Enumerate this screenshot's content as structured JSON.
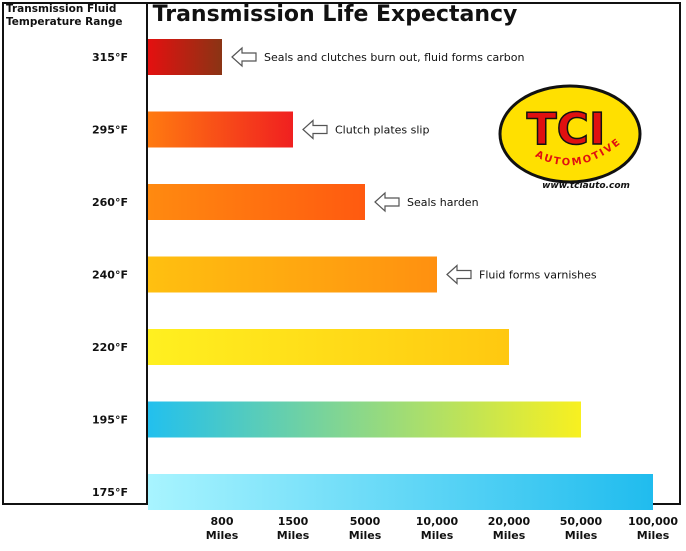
{
  "chart_data": {
    "type": "bar",
    "orientation": "horizontal",
    "title": "Transmission Life Expectancy",
    "ylabel": "Transmission Fluid\nTemperature Range",
    "xlabel": "",
    "categories": [
      "315°F",
      "295°F",
      "260°F",
      "240°F",
      "220°F",
      "195°F",
      "175°F"
    ],
    "x_ticks": [
      "800\nMiles",
      "1500\nMiles",
      "5000\nMiles",
      "10,000\nMiles",
      "20,000\nMiles",
      "50,000\nMiles",
      "100,000\nMiles"
    ],
    "values": [
      "800 Miles",
      "1500 Miles",
      "5000 Miles",
      "10,000 Miles",
      "20,000 Miles",
      "50,000 Miles",
      "100,000 Miles"
    ],
    "value_index": [
      1,
      2,
      3,
      4,
      5,
      6,
      7
    ],
    "annotations": [
      "Seals and clutches burn out, fluid forms carbon",
      "Clutch plates slip",
      "Seals harden",
      "Fluid forms varnishes",
      "",
      "",
      ""
    ],
    "bar_colors": [
      [
        "#e41010",
        "#8a3414"
      ],
      [
        "#ff7a10",
        "#f02020"
      ],
      [
        "#ff8a10",
        "#ff5a10"
      ],
      [
        "#ffc010",
        "#ff9010"
      ],
      [
        "#fff020",
        "#ffc810"
      ],
      [
        "#22c0ee",
        "#f8f020"
      ],
      [
        "#a8f4ff",
        "#20bcee"
      ]
    ],
    "grid": false,
    "legend": "none"
  },
  "logo": {
    "brand": "TCI",
    "subtitle": "AUTOMOTIVE",
    "url": "www.tciauto.com",
    "colors": {
      "fill": "#ffe000",
      "outline": "#111111",
      "text": "#e01010"
    }
  }
}
